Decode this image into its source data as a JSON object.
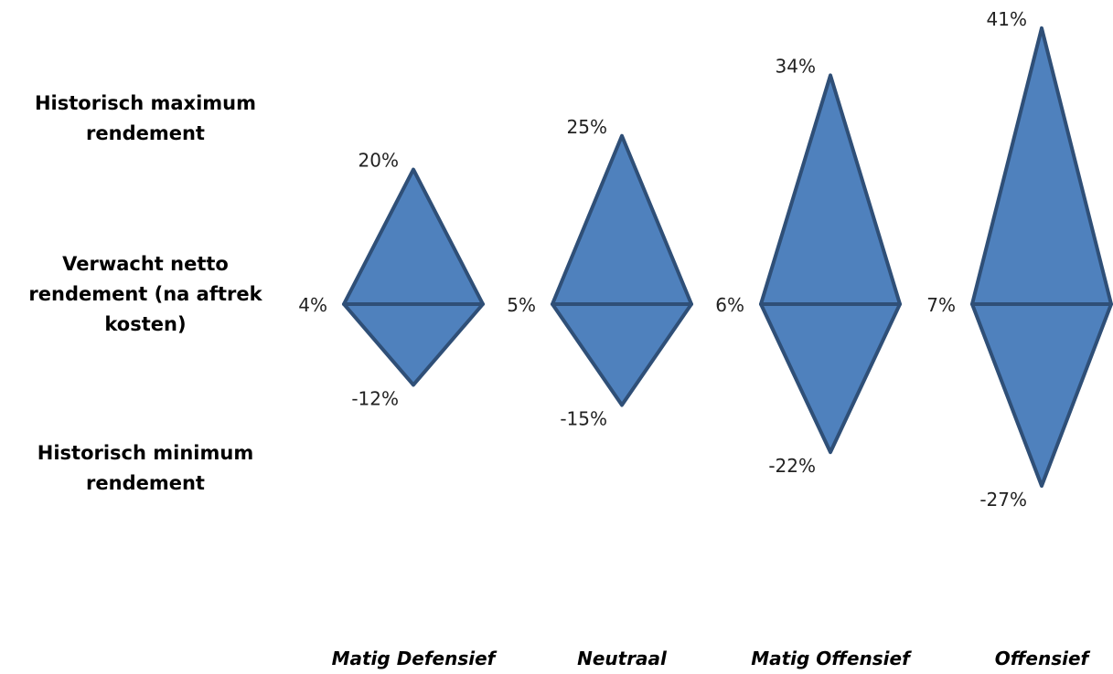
{
  "row_labels": {
    "max": "Historisch maximum rendement",
    "expected": "Verwacht netto rendement (na aftrek kosten)",
    "min": "Historisch minimum rendement"
  },
  "chart_data": {
    "type": "range-diamond",
    "unit": "%",
    "categories": [
      "Matig Defensief",
      "Neutraal",
      "Matig Offensief",
      "Offensief"
    ],
    "series": [
      {
        "name": "Historisch maximum rendement",
        "values": [
          20,
          25,
          34,
          41
        ]
      },
      {
        "name": "Verwacht netto rendement (na aftrek kosten)",
        "values": [
          4,
          5,
          6,
          7
        ]
      },
      {
        "name": "Historisch minimum rendement",
        "values": [
          -12,
          -15,
          -22,
          -27
        ]
      }
    ],
    "max_labels": [
      "20%",
      "25%",
      "34%",
      "41%"
    ],
    "expected_labels": [
      "4%",
      "5%",
      "6%",
      "7%"
    ],
    "min_labels": [
      "-12%",
      "-15%",
      "-22%",
      "-27%"
    ],
    "colors": {
      "fill": "#4F81BD",
      "stroke": "#2F4F77"
    }
  }
}
